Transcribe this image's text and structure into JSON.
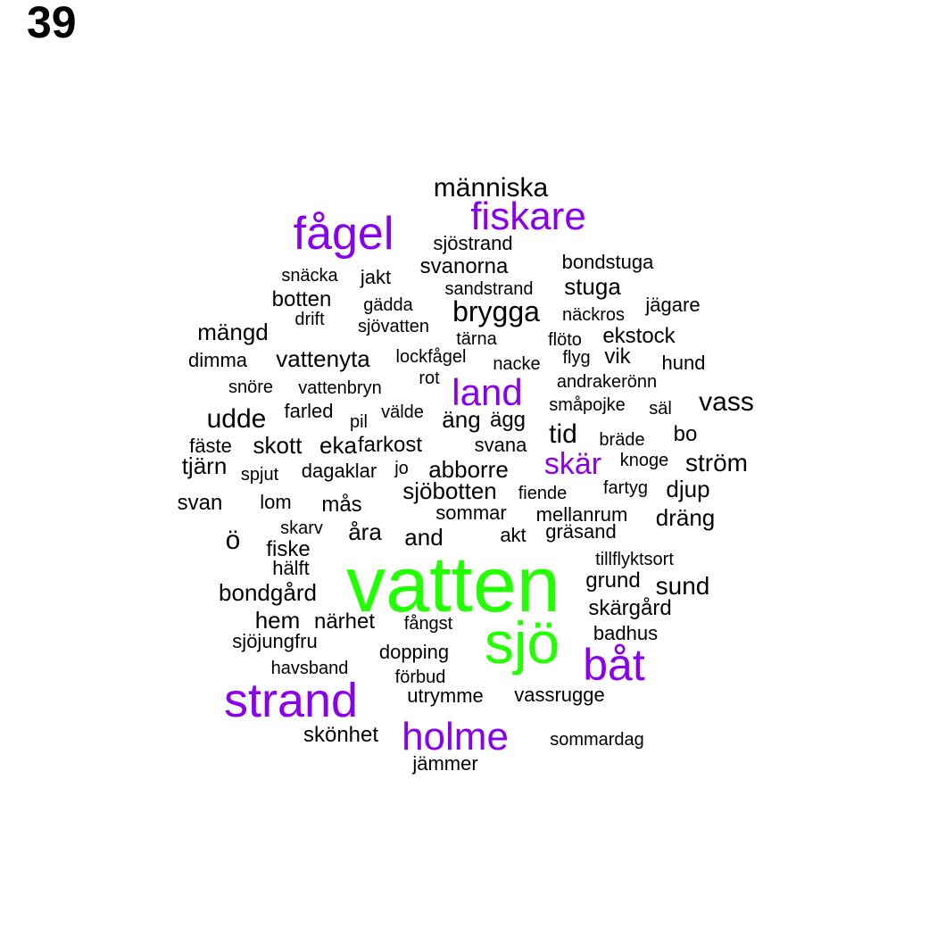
{
  "panel_number": "39",
  "colors": {
    "high": "#22ff00",
    "mid": "#8a00ee",
    "low": "#000000"
  },
  "words": [
    {
      "text": "vatten",
      "color": "high"
    },
    {
      "text": "sjö",
      "color": "high"
    },
    {
      "text": "båt",
      "color": "mid"
    },
    {
      "text": "strand",
      "color": "mid"
    },
    {
      "text": "holme",
      "color": "mid"
    },
    {
      "text": "fågel",
      "color": "mid"
    },
    {
      "text": "fiskare",
      "color": "mid"
    },
    {
      "text": "land",
      "color": "mid"
    },
    {
      "text": "skär",
      "color": "mid"
    },
    {
      "text": "människa",
      "color": "low"
    },
    {
      "text": "sjöstrand",
      "color": "low"
    },
    {
      "text": "svanorna",
      "color": "low"
    },
    {
      "text": "bondstuga",
      "color": "low"
    },
    {
      "text": "snäcka",
      "color": "low"
    },
    {
      "text": "jakt",
      "color": "low"
    },
    {
      "text": "sandstrand",
      "color": "low"
    },
    {
      "text": "stuga",
      "color": "low"
    },
    {
      "text": "botten",
      "color": "low"
    },
    {
      "text": "gädda",
      "color": "low"
    },
    {
      "text": "brygga",
      "color": "low"
    },
    {
      "text": "näckros",
      "color": "low"
    },
    {
      "text": "jägare",
      "color": "low"
    },
    {
      "text": "drift",
      "color": "low"
    },
    {
      "text": "sjövatten",
      "color": "low"
    },
    {
      "text": "mängd",
      "color": "low"
    },
    {
      "text": "tärna",
      "color": "low"
    },
    {
      "text": "flöto",
      "color": "low"
    },
    {
      "text": "ekstock",
      "color": "low"
    },
    {
      "text": "dimma",
      "color": "low"
    },
    {
      "text": "vattenyta",
      "color": "low"
    },
    {
      "text": "lockfågel",
      "color": "low"
    },
    {
      "text": "nacke",
      "color": "low"
    },
    {
      "text": "flyg",
      "color": "low"
    },
    {
      "text": "vik",
      "color": "low"
    },
    {
      "text": "hund",
      "color": "low"
    },
    {
      "text": "snöre",
      "color": "low"
    },
    {
      "text": "vattenbryn",
      "color": "low"
    },
    {
      "text": "rot",
      "color": "low"
    },
    {
      "text": "andrakerönn",
      "color": "low"
    },
    {
      "text": "vass",
      "color": "low"
    },
    {
      "text": "farled",
      "color": "low"
    },
    {
      "text": "småpojke",
      "color": "low"
    },
    {
      "text": "säl",
      "color": "low"
    },
    {
      "text": "udde",
      "color": "low"
    },
    {
      "text": "pil",
      "color": "low"
    },
    {
      "text": "välde",
      "color": "low"
    },
    {
      "text": "äng",
      "color": "low"
    },
    {
      "text": "ägg",
      "color": "low"
    },
    {
      "text": "tid",
      "color": "low"
    },
    {
      "text": "bo",
      "color": "low"
    },
    {
      "text": "bräde",
      "color": "low"
    },
    {
      "text": "fäste",
      "color": "low"
    },
    {
      "text": "skott",
      "color": "low"
    },
    {
      "text": "eka",
      "color": "low"
    },
    {
      "text": "farkost",
      "color": "low"
    },
    {
      "text": "svana",
      "color": "low"
    },
    {
      "text": "tjärn",
      "color": "low"
    },
    {
      "text": "spjut",
      "color": "low"
    },
    {
      "text": "dagaklar",
      "color": "low"
    },
    {
      "text": "jo",
      "color": "low"
    },
    {
      "text": "abborre",
      "color": "low"
    },
    {
      "text": "knoge",
      "color": "low"
    },
    {
      "text": "ström",
      "color": "low"
    },
    {
      "text": "sjöbotten",
      "color": "low"
    },
    {
      "text": "fiende",
      "color": "low"
    },
    {
      "text": "fartyg",
      "color": "low"
    },
    {
      "text": "djup",
      "color": "low"
    },
    {
      "text": "svan",
      "color": "low"
    },
    {
      "text": "lom",
      "color": "low"
    },
    {
      "text": "mås",
      "color": "low"
    },
    {
      "text": "sommar",
      "color": "low"
    },
    {
      "text": "mellanrum",
      "color": "low"
    },
    {
      "text": "dräng",
      "color": "low"
    },
    {
      "text": "skarv",
      "color": "low"
    },
    {
      "text": "åra",
      "color": "low"
    },
    {
      "text": "and",
      "color": "low"
    },
    {
      "text": "akt",
      "color": "low"
    },
    {
      "text": "gräsand",
      "color": "low"
    },
    {
      "text": "ö",
      "color": "low"
    },
    {
      "text": "fiske",
      "color": "low"
    },
    {
      "text": "tillflyktsort",
      "color": "low"
    },
    {
      "text": "hälft",
      "color": "low"
    },
    {
      "text": "grund",
      "color": "low"
    },
    {
      "text": "sund",
      "color": "low"
    },
    {
      "text": "bondgård",
      "color": "low"
    },
    {
      "text": "skärgård",
      "color": "low"
    },
    {
      "text": "hem",
      "color": "low"
    },
    {
      "text": "närhet",
      "color": "low"
    },
    {
      "text": "fångst",
      "color": "low"
    },
    {
      "text": "sjöjungfru",
      "color": "low"
    },
    {
      "text": "badhus",
      "color": "low"
    },
    {
      "text": "dopping",
      "color": "low"
    },
    {
      "text": "havsband",
      "color": "low"
    },
    {
      "text": "förbud",
      "color": "low"
    },
    {
      "text": "utrymme",
      "color": "low"
    },
    {
      "text": "vassrugge",
      "color": "low"
    },
    {
      "text": "skönhet",
      "color": "low"
    },
    {
      "text": "sommardag",
      "color": "low"
    },
    {
      "text": "jämmer",
      "color": "low"
    }
  ]
}
